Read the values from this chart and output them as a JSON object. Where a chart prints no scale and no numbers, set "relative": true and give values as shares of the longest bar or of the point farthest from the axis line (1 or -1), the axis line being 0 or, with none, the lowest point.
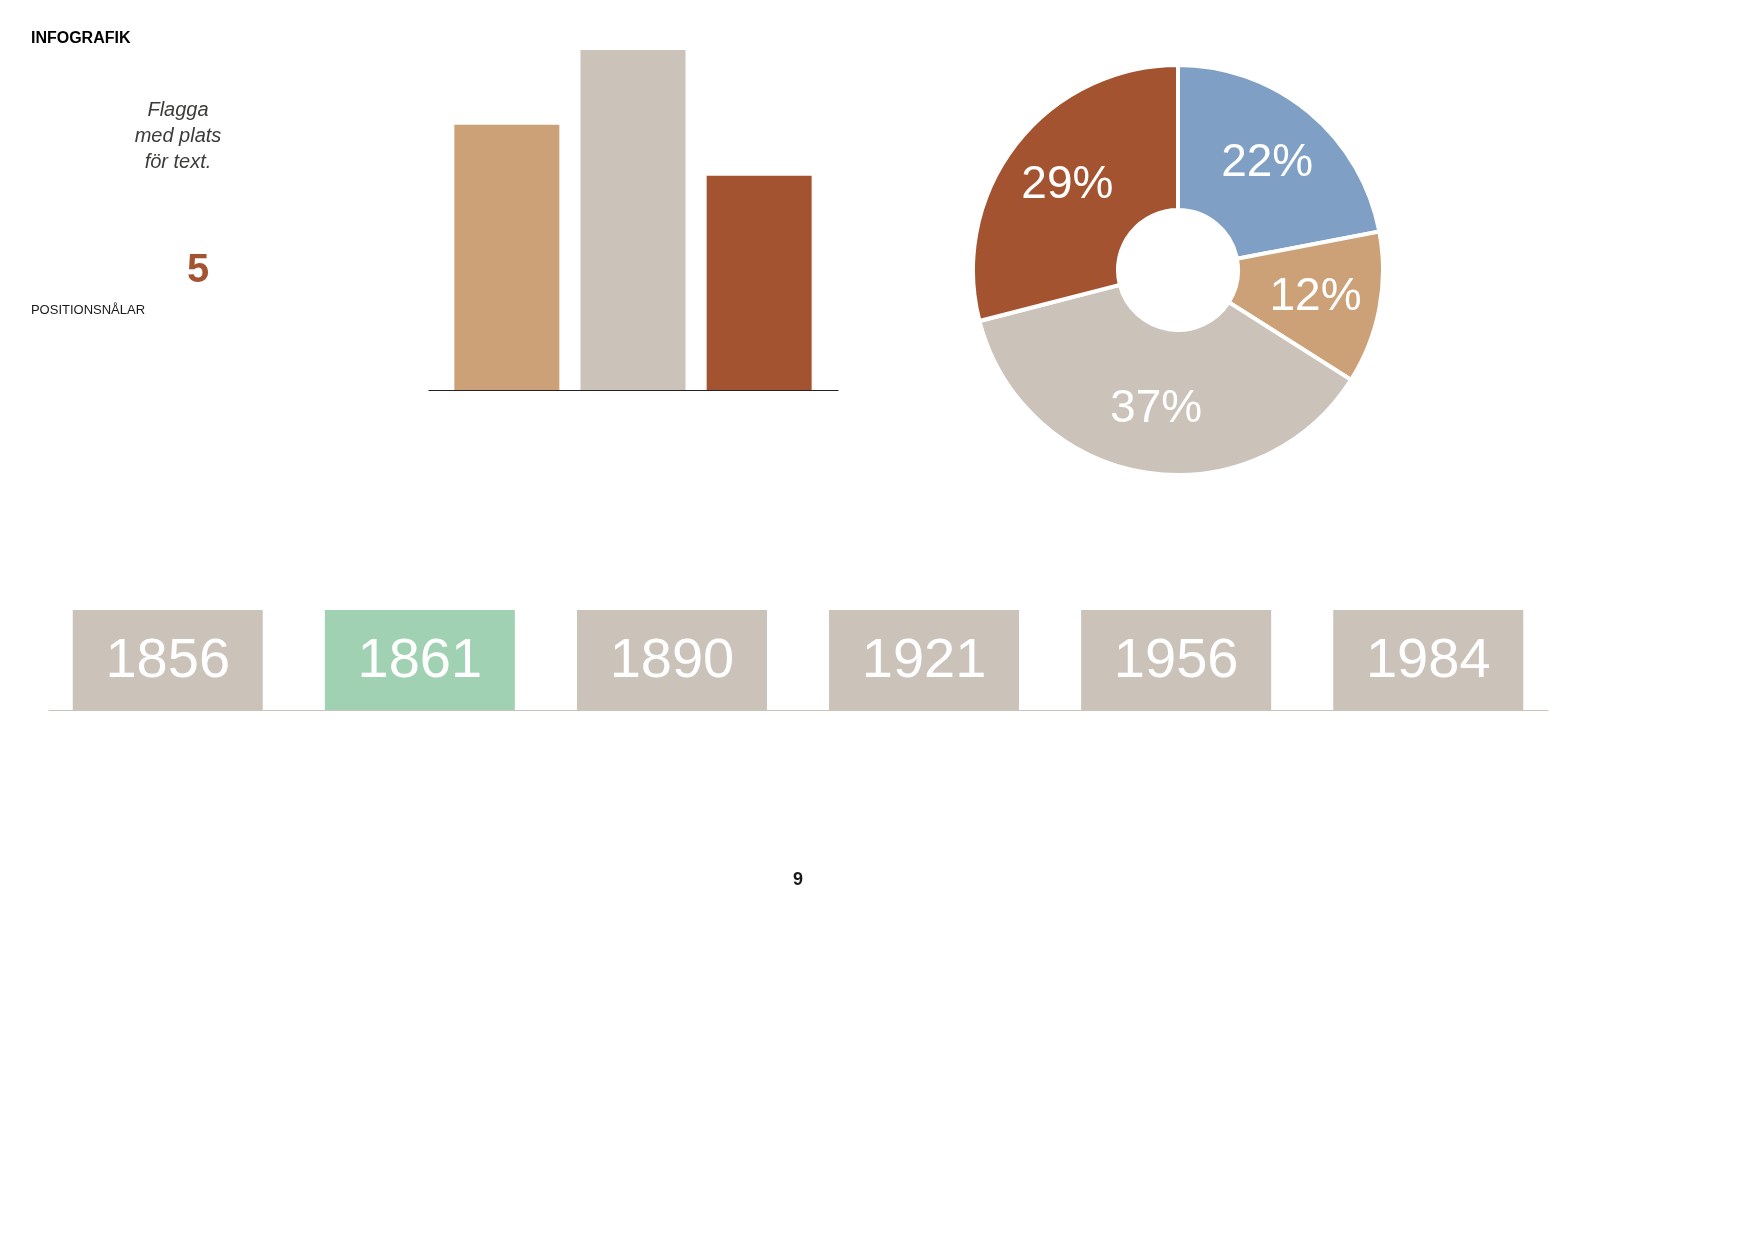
{
  "chart_data": [
    {
      "type": "other",
      "title": "INFOGRAFIK",
      "annotations": [
        "Flagga",
        "med plats",
        "för text.",
        "5",
        "POSITIONSNÅLAR"
      ],
      "colors": [
        "#3a3c38",
        "#3a3c38",
        "#3a3c38",
        "#a3532f",
        "#1a1a1a"
      ]
    },
    {
      "type": "bar",
      "relative": true,
      "categories": [
        null,
        null,
        null
      ],
      "values": [
        0.78,
        1,
        0.63
      ],
      "colors": [
        "#cca178",
        "#cbc2ba",
        "#a3532f"
      ]
    },
    {
      "type": "donut",
      "categories": [
        null,
        null,
        null,
        null
      ],
      "values": [
        22,
        12,
        37,
        29
      ],
      "value_labels": [
        "22%",
        "12%",
        "37%",
        "29%"
      ],
      "colors": [
        "#7f9fc4",
        "#cca178",
        "#cbc2ba",
        "#a3532f"
      ]
    },
    {
      "type": "bar",
      "relative": true,
      "categories": [
        "1856",
        "1861",
        "1890",
        "1921",
        "1956",
        "1984"
      ],
      "values": [
        1,
        1,
        1,
        1,
        1,
        1
      ],
      "colors": [
        "#cbc2ba",
        "#a0d1b2",
        "#cbc2ba",
        "#cbc2ba",
        "#cbc2ba",
        "#cbc2ba"
      ],
      "annotations": [
        "9"
      ]
    }
  ]
}
